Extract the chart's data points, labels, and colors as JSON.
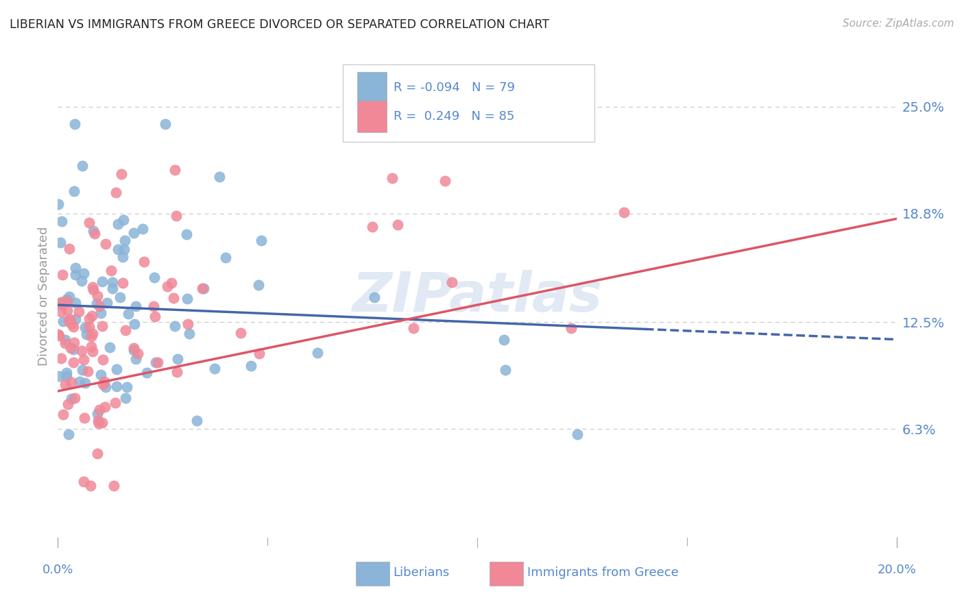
{
  "title": "LIBERIAN VS IMMIGRANTS FROM GREECE DIVORCED OR SEPARATED CORRELATION CHART",
  "source": "Source: ZipAtlas.com",
  "ylabel": "Divorced or Separated",
  "xmin": 0.0,
  "xmax": 20.0,
  "ymin": 0.0,
  "ymax": 28.0,
  "yticks": [
    6.3,
    12.5,
    18.8,
    25.0
  ],
  "ytick_labels": [
    "6.3%",
    "12.5%",
    "18.8%",
    "25.0%"
  ],
  "xtick_labels": [
    "0.0%",
    "20.0%"
  ],
  "liberian_color": "#8ab4d8",
  "greece_color": "#f08898",
  "trend_liberian_color": "#4466aa",
  "trend_greece_color": "#dd5566",
  "watermark": "ZIPatlas",
  "liberian_R": -0.094,
  "liberian_N": 79,
  "greece_R": 0.249,
  "greece_N": 85,
  "title_color": "#222222",
  "axis_label_color": "#5588cc",
  "grid_color": "#cccccc",
  "background_color": "#ffffff",
  "trend_lib_x0": 0.0,
  "trend_lib_y0": 13.5,
  "trend_lib_x1": 20.0,
  "trend_lib_y1": 11.5,
  "trend_greece_x0": 0.0,
  "trend_greece_y0": 8.5,
  "trend_greece_x1": 20.0,
  "trend_greece_y1": 18.5
}
